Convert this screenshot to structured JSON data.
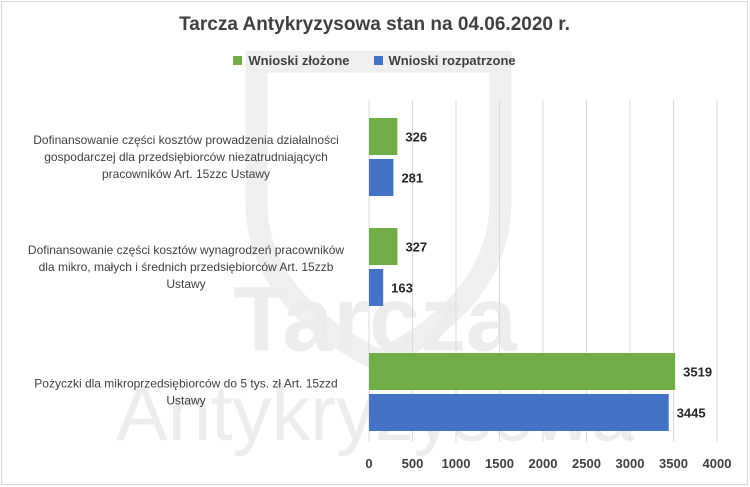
{
  "colors": {
    "series_green": "#70ad47",
    "series_blue": "#4472c4",
    "grid": "#d9d9d9",
    "text": "#404040",
    "watermark": "#ededed"
  },
  "watermark": {
    "line1": "Tarcza",
    "line2": "Antykryzysowa"
  },
  "chart_data": {
    "type": "bar",
    "orientation": "horizontal",
    "title": "Tarcza Antykryzysowa stan na 04.06.2020 r.",
    "categories": [
      "Dofinansowanie części kosztów prowadzenia działalności gospodarczej dla przedsiębiorców niezatrudniających pracowników Art. 15zzc Ustawy",
      "Dofinansowanie części kosztów wynagrodzeń pracowników dla mikro, małych i średnich przedsiębiorców Art. 15zzb Ustawy",
      "Pożyczki dla mikroprzedsiębiorców do 5 tys. zł Art. 15zzd Ustawy"
    ],
    "category_lines": [
      [
        "Dofinansowanie części kosztów prowadzenia działalności",
        "gospodarczej dla przedsiębiorców niezatrudniających",
        "pracowników Art. 15zzc Ustawy"
      ],
      [
        "Dofinansowanie części kosztów wynagrodzeń pracowników",
        "dla mikro, małych i średnich przedsiębiorców Art. 15zzb",
        "Ustawy"
      ],
      [
        "Pożyczki dla mikroprzedsiębiorców do 5 tys. zł Art. 15zzd",
        "Ustawy"
      ]
    ],
    "series": [
      {
        "name": "Wnioski złożone",
        "color": "#70ad47",
        "values": [
          326,
          327,
          3519
        ]
      },
      {
        "name": "Wnioski rozpatrzone",
        "color": "#4472c4",
        "values": [
          281,
          163,
          3445
        ]
      }
    ],
    "xlim": [
      0,
      4000
    ],
    "xticks": [
      0,
      500,
      1000,
      1500,
      2000,
      2500,
      3000,
      3500,
      4000
    ],
    "xtick_labels": [
      "0",
      "500",
      "1000",
      "1500",
      "2000",
      "2500",
      "3000",
      "3500",
      "4000"
    ],
    "grid": true,
    "legend_position": "top"
  }
}
